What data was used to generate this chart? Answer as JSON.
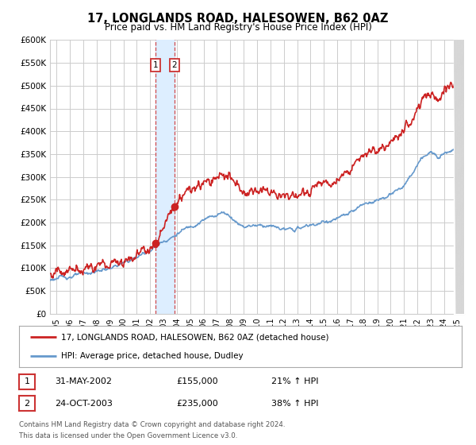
{
  "title": "17, LONGLANDS ROAD, HALESOWEN, B62 0AZ",
  "subtitle": "Price paid vs. HM Land Registry's House Price Index (HPI)",
  "ylim": [
    0,
    600000
  ],
  "yticks": [
    0,
    50000,
    100000,
    150000,
    200000,
    250000,
    300000,
    350000,
    400000,
    450000,
    500000,
    550000,
    600000
  ],
  "ytick_labels": [
    "£0",
    "£50K",
    "£100K",
    "£150K",
    "£200K",
    "£250K",
    "£300K",
    "£350K",
    "£400K",
    "£450K",
    "£500K",
    "£550K",
    "£600K"
  ],
  "xlim_start": 1994.5,
  "xlim_end": 2025.5,
  "xticks": [
    1995,
    1996,
    1997,
    1998,
    1999,
    2000,
    2001,
    2002,
    2003,
    2004,
    2005,
    2006,
    2007,
    2008,
    2009,
    2010,
    2011,
    2012,
    2013,
    2014,
    2015,
    2016,
    2017,
    2018,
    2019,
    2020,
    2021,
    2022,
    2023,
    2024,
    2025
  ],
  "sale1_x": 2002.416,
  "sale1_y": 155000,
  "sale2_x": 2003.816,
  "sale2_y": 235000,
  "shade_start": 2002.416,
  "shade_end": 2003.816,
  "legend_line1": "17, LONGLANDS ROAD, HALESOWEN, B62 0AZ (detached house)",
  "legend_line2": "HPI: Average price, detached house, Dudley",
  "table_row1": [
    "1",
    "31-MAY-2002",
    "£155,000",
    "21% ↑ HPI"
  ],
  "table_row2": [
    "2",
    "24-OCT-2003",
    "£235,000",
    "38% ↑ HPI"
  ],
  "footer1": "Contains HM Land Registry data © Crown copyright and database right 2024.",
  "footer2": "This data is licensed under the Open Government Licence v3.0.",
  "hpi_color": "#6699cc",
  "price_color": "#cc2222",
  "dot_color": "#cc2222",
  "shade_color": "#ddeeff",
  "dashed_color": "#cc2222",
  "bg_color": "#ffffff",
  "grid_color": "#cccccc",
  "box_color": "#cc3333",
  "hatch_color": "#cccccc"
}
